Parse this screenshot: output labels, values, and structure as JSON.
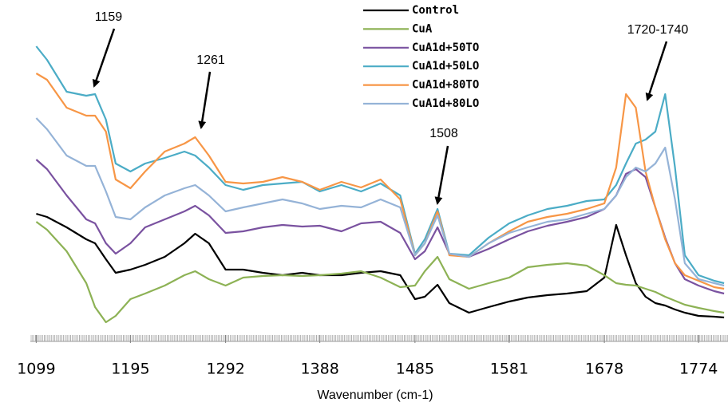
{
  "chart_data": {
    "type": "line",
    "x_label": "Wavenumber (cm-1)",
    "x": [
      1099,
      1110,
      1130,
      1150,
      1159,
      1170,
      1180,
      1195,
      1210,
      1230,
      1250,
      1261,
      1275,
      1292,
      1310,
      1330,
      1350,
      1370,
      1388,
      1410,
      1430,
      1450,
      1470,
      1485,
      1495,
      1508,
      1520,
      1540,
      1560,
      1581,
      1600,
      1620,
      1640,
      1660,
      1678,
      1690,
      1700,
      1710,
      1720,
      1730,
      1740,
      1750,
      1760,
      1774,
      1790,
      1800
    ],
    "xlim": [
      1093,
      1804
    ],
    "xticks": [
      1099,
      1195,
      1292,
      1388,
      1485,
      1581,
      1678,
      1774
    ],
    "ylim": [
      0,
      400
    ],
    "series": [
      {
        "name": "Control",
        "color": "#000000",
        "values": [
          142,
          138,
          125,
          110,
          105,
          85,
          68,
          72,
          78,
          88,
          105,
          117,
          105,
          72,
          72,
          68,
          65,
          68,
          65,
          65,
          68,
          70,
          65,
          35,
          38,
          53,
          30,
          18,
          25,
          32,
          37,
          40,
          42,
          45,
          62,
          128,
          90,
          55,
          38,
          30,
          27,
          22,
          18,
          14,
          13,
          12
        ]
      },
      {
        "name": "CuA",
        "color": "#8db255",
        "values": [
          132,
          122,
          95,
          55,
          25,
          6,
          14,
          35,
          42,
          52,
          65,
          70,
          60,
          52,
          62,
          64,
          65,
          64,
          65,
          67,
          70,
          62,
          50,
          52,
          70,
          88,
          60,
          48,
          55,
          62,
          75,
          78,
          80,
          77,
          65,
          55,
          53,
          52,
          48,
          44,
          38,
          33,
          28,
          24,
          20,
          18
        ]
      },
      {
        "name": "CuA1d+50TO",
        "color": "#7a52a0",
        "values": [
          210,
          198,
          165,
          135,
          130,
          105,
          92,
          105,
          125,
          135,
          145,
          152,
          140,
          118,
          120,
          125,
          128,
          126,
          127,
          120,
          130,
          132,
          118,
          85,
          95,
          125,
          92,
          88,
          98,
          110,
          120,
          127,
          132,
          138,
          148,
          165,
          192,
          198,
          188,
          150,
          112,
          80,
          60,
          52,
          45,
          42
        ]
      },
      {
        "name": "CuA1d+50LO",
        "color": "#4bacc6",
        "values": [
          352,
          335,
          295,
          290,
          292,
          260,
          205,
          195,
          205,
          212,
          220,
          215,
          200,
          178,
          172,
          178,
          180,
          182,
          170,
          178,
          170,
          180,
          165,
          92,
          110,
          148,
          92,
          90,
          112,
          130,
          140,
          148,
          152,
          158,
          160,
          178,
          205,
          230,
          235,
          245,
          292,
          200,
          90,
          65,
          58,
          55
        ]
      },
      {
        "name": "CuA1d+80TO",
        "color": "#f79646",
        "values": [
          318,
          310,
          275,
          265,
          265,
          245,
          185,
          174,
          195,
          220,
          230,
          238,
          215,
          182,
          180,
          182,
          188,
          182,
          172,
          182,
          175,
          185,
          160,
          90,
          105,
          145,
          90,
          88,
          105,
          120,
          132,
          138,
          142,
          148,
          155,
          200,
          292,
          275,
          195,
          150,
          110,
          80,
          65,
          58,
          50,
          48
        ]
      },
      {
        "name": "CuA1d+80LO",
        "color": "#95b3d7",
        "values": [
          262,
          248,
          215,
          202,
          202,
          170,
          138,
          135,
          150,
          165,
          174,
          178,
          165,
          145,
          150,
          155,
          160,
          155,
          148,
          152,
          150,
          160,
          150,
          90,
          105,
          140,
          92,
          88,
          105,
          118,
          125,
          132,
          135,
          142,
          148,
          165,
          188,
          200,
          195,
          205,
          225,
          160,
          80,
          60,
          55,
          52
        ]
      }
    ],
    "annotations": [
      "1159",
      "1261",
      "1508",
      "1720-1740"
    ]
  }
}
